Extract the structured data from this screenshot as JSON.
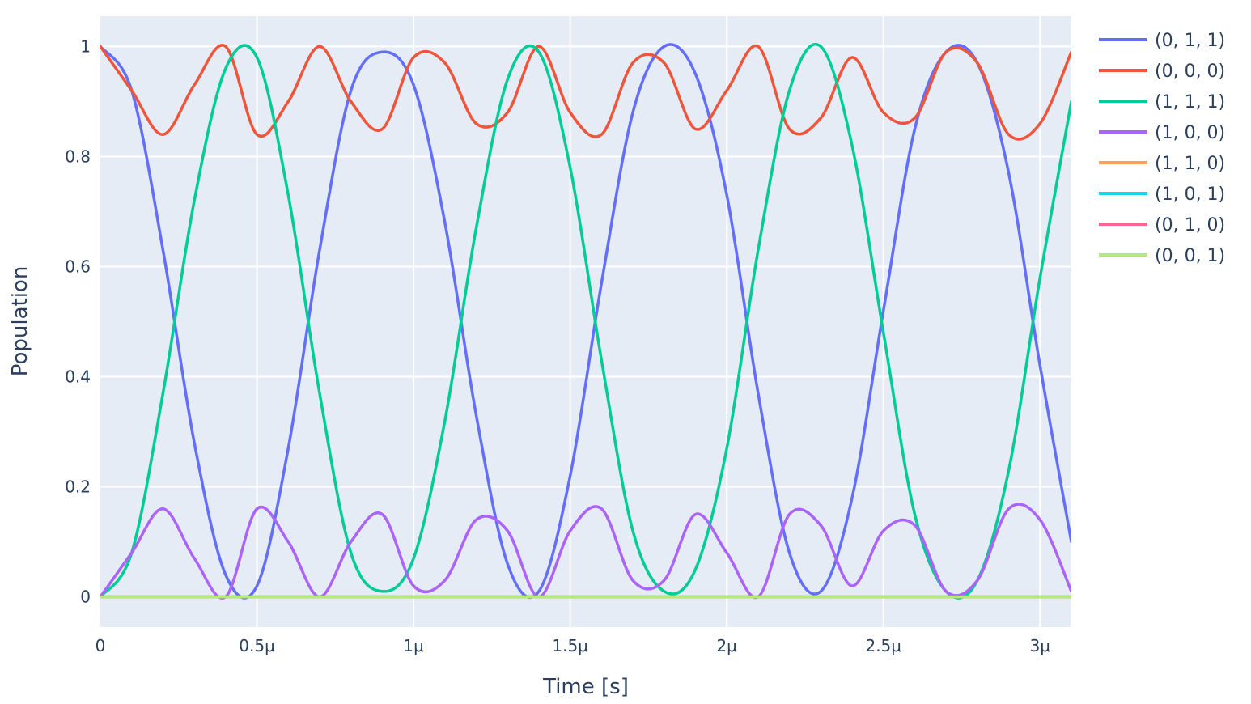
{
  "chart_data": {
    "type": "line",
    "xlabel": "Time [s]",
    "ylabel": "Population",
    "xlim": [
      0,
      3.1e-06
    ],
    "ylim": [
      -0.055,
      1.055
    ],
    "grid": true,
    "legend_position": "top-right outside",
    "background_color": "#e5ecf6",
    "x_ticks": [
      {
        "value": 0,
        "label": "0"
      },
      {
        "value": 5e-07,
        "label": "0.5μ"
      },
      {
        "value": 1e-06,
        "label": "1μ"
      },
      {
        "value": 1.5e-06,
        "label": "1.5μ"
      },
      {
        "value": 2e-06,
        "label": "2μ"
      },
      {
        "value": 2.5e-06,
        "label": "2.5μ"
      },
      {
        "value": 3e-06,
        "label": "3μ"
      }
    ],
    "y_ticks": [
      {
        "value": 0,
        "label": "0"
      },
      {
        "value": 0.2,
        "label": "0.2"
      },
      {
        "value": 0.4,
        "label": "0.4"
      },
      {
        "value": 0.6,
        "label": "0.6"
      },
      {
        "value": 0.8,
        "label": "0.8"
      },
      {
        "value": 1,
        "label": "1"
      }
    ],
    "x": [
      0,
      1e-07,
      2e-07,
      3e-07,
      4e-07,
      5e-07,
      6e-07,
      7e-07,
      8e-07,
      9e-07,
      1e-06,
      1.1e-06,
      1.2e-06,
      1.3e-06,
      1.4e-06,
      1.5e-06,
      1.6e-06,
      1.7e-06,
      1.8e-06,
      1.9e-06,
      2e-06,
      2.1e-06,
      2.2e-06,
      2.3e-06,
      2.4e-06,
      2.5e-06,
      2.6e-06,
      2.7e-06,
      2.8e-06,
      2.9e-06,
      3e-06,
      3.1e-06
    ],
    "series": [
      {
        "name": "(0, 1, 1)",
        "color": "#636efa",
        "values": [
          1.0,
          0.92,
          0.63,
          0.28,
          0.04,
          0.02,
          0.27,
          0.63,
          0.92,
          0.99,
          0.93,
          0.68,
          0.33,
          0.06,
          0.01,
          0.22,
          0.57,
          0.88,
          1.0,
          0.95,
          0.73,
          0.37,
          0.08,
          0.01,
          0.18,
          0.52,
          0.85,
          0.99,
          0.97,
          0.77,
          0.42,
          0.1
        ]
      },
      {
        "name": "(0, 0, 0)",
        "color": "#ef553b",
        "values": [
          1.0,
          0.92,
          0.84,
          0.93,
          1.0,
          0.84,
          0.9,
          1.0,
          0.9,
          0.85,
          0.98,
          0.97,
          0.86,
          0.88,
          1.0,
          0.88,
          0.84,
          0.97,
          0.97,
          0.85,
          0.92,
          1.0,
          0.85,
          0.87,
          0.98,
          0.88,
          0.87,
          0.99,
          0.97,
          0.84,
          0.86,
          0.99
        ]
      },
      {
        "name": "(1, 1, 1)",
        "color": "#00cc96",
        "values": [
          0.0,
          0.08,
          0.37,
          0.72,
          0.96,
          0.98,
          0.73,
          0.37,
          0.08,
          0.01,
          0.07,
          0.32,
          0.67,
          0.94,
          0.99,
          0.78,
          0.43,
          0.12,
          0.01,
          0.05,
          0.27,
          0.63,
          0.92,
          1.0,
          0.82,
          0.48,
          0.15,
          0.01,
          0.03,
          0.23,
          0.58,
          0.9
        ]
      },
      {
        "name": "(1, 0, 0)",
        "color": "#ab63fa",
        "values": [
          0.0,
          0.08,
          0.16,
          0.07,
          0.0,
          0.16,
          0.1,
          0.0,
          0.1,
          0.15,
          0.02,
          0.03,
          0.14,
          0.12,
          0.0,
          0.12,
          0.16,
          0.03,
          0.03,
          0.15,
          0.08,
          0.0,
          0.15,
          0.13,
          0.02,
          0.12,
          0.13,
          0.01,
          0.03,
          0.16,
          0.14,
          0.01
        ]
      },
      {
        "name": "(1, 1, 0)",
        "color": "#ffa15a",
        "values": [
          0,
          0,
          0,
          0,
          0,
          0,
          0,
          0,
          0,
          0,
          0,
          0,
          0,
          0,
          0,
          0,
          0,
          0,
          0,
          0,
          0,
          0,
          0,
          0,
          0,
          0,
          0,
          0,
          0,
          0,
          0,
          0
        ]
      },
      {
        "name": "(1, 0, 1)",
        "color": "#19d3f3",
        "values": [
          0,
          0,
          0,
          0,
          0,
          0,
          0,
          0,
          0,
          0,
          0,
          0,
          0,
          0,
          0,
          0,
          0,
          0,
          0,
          0,
          0,
          0,
          0,
          0,
          0,
          0,
          0,
          0,
          0,
          0,
          0,
          0
        ]
      },
      {
        "name": "(0, 1, 0)",
        "color": "#ff6692",
        "values": [
          0,
          0,
          0,
          0,
          0,
          0,
          0,
          0,
          0,
          0,
          0,
          0,
          0,
          0,
          0,
          0,
          0,
          0,
          0,
          0,
          0,
          0,
          0,
          0,
          0,
          0,
          0,
          0,
          0,
          0,
          0,
          0
        ]
      },
      {
        "name": "(0, 0, 1)",
        "color": "#b6e880",
        "values": [
          0,
          0,
          0,
          0,
          0,
          0,
          0,
          0,
          0,
          0,
          0,
          0,
          0,
          0,
          0,
          0,
          0,
          0,
          0,
          0,
          0,
          0,
          0,
          0,
          0,
          0,
          0,
          0,
          0,
          0,
          0,
          0
        ]
      }
    ]
  }
}
